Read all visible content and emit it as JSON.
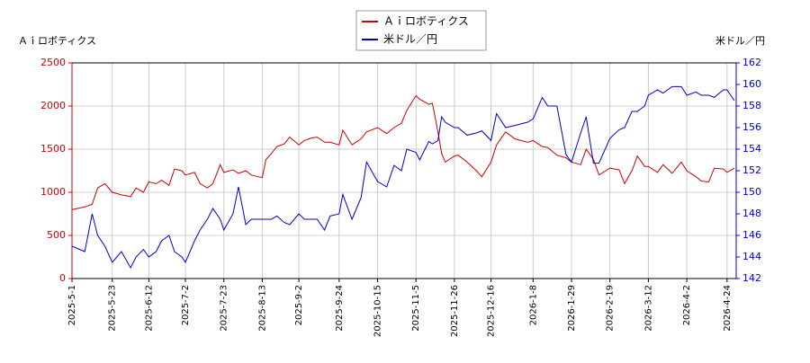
{
  "chart_data": {
    "type": "line",
    "y_label": "Ａｉロボティクス",
    "y2_label": "米ドル／円",
    "x": [
      "2025-5-1",
      "2025-5-8",
      "2025-5-12",
      "2025-5-15",
      "2025-5-19",
      "2025-5-23",
      "2025-5-28",
      "2025-6-2",
      "2025-6-5",
      "2025-6-9",
      "2025-6-12",
      "2025-6-16",
      "2025-6-19",
      "2025-6-23",
      "2025-6-26",
      "2025-6-30",
      "2025-7-2",
      "2025-7-7",
      "2025-7-10",
      "2025-7-14",
      "2025-7-17",
      "2025-7-21",
      "2025-7-23",
      "2025-7-28",
      "2025-7-31",
      "2025-8-4",
      "2025-8-7",
      "2025-8-13",
      "2025-8-15",
      "2025-8-18",
      "2025-8-21",
      "2025-8-25",
      "2025-8-28",
      "2025-9-2",
      "2025-9-5",
      "2025-9-9",
      "2025-9-12",
      "2025-9-16",
      "2025-9-19",
      "2025-9-24",
      "2025-9-26",
      "2025-10-1",
      "2025-10-6",
      "2025-10-9",
      "2025-10-15",
      "2025-10-20",
      "2025-10-24",
      "2025-10-28",
      "2025-10-31",
      "2025-11-5",
      "2025-11-7",
      "2025-11-12",
      "2025-11-14",
      "2025-11-17",
      "2025-11-19",
      "2025-11-21",
      "2025-11-26",
      "2025-11-28",
      "2025-12-3",
      "2025-12-8",
      "2025-12-11",
      "2025-12-16",
      "2025-12-19",
      "2025-12-24",
      "2025-12-29",
      "2026-1-5",
      "2026-1-8",
      "2026-1-13",
      "2026-1-16",
      "2026-1-21",
      "2026-1-26",
      "2026-1-29",
      "2026-2-3",
      "2026-2-6",
      "2026-2-10",
      "2026-2-13",
      "2026-2-19",
      "2026-2-24",
      "2026-2-27",
      "2026-3-3",
      "2026-3-6",
      "2026-3-10",
      "2026-3-12",
      "2026-3-17",
      "2026-3-20",
      "2026-3-25",
      "2026-3-30",
      "2026-4-2",
      "2026-4-7",
      "2026-4-10",
      "2026-4-14",
      "2026-4-17",
      "2026-4-22",
      "2026-4-24",
      "2026-4-28"
    ],
    "series": [
      {
        "name": "Ａｉロボティクス",
        "color": "#cc0000",
        "values": [
          800,
          830,
          860,
          1050,
          1100,
          1000,
          970,
          950,
          1050,
          1000,
          1120,
          1100,
          1140,
          1080,
          1270,
          1250,
          1200,
          1230,
          1100,
          1050,
          1100,
          1320,
          1230,
          1260,
          1220,
          1250,
          1200,
          1170,
          1380,
          1450,
          1530,
          1560,
          1640,
          1550,
          1600,
          1630,
          1640,
          1580,
          1580,
          1550,
          1720,
          1550,
          1620,
          1700,
          1750,
          1680,
          1750,
          1800,
          1950,
          2120,
          2080,
          2020,
          2030,
          1700,
          1450,
          1350,
          1420,
          1430,
          1350,
          1250,
          1180,
          1350,
          1550,
          1700,
          1620,
          1580,
          1600,
          1530,
          1520,
          1430,
          1400,
          1350,
          1320,
          1500,
          1380,
          1200,
          1280,
          1260,
          1100,
          1250,
          1420,
          1300,
          1300,
          1230,
          1320,
          1220,
          1350,
          1250,
          1180,
          1130,
          1120,
          1280,
          1270,
          1230,
          1280
        ]
      },
      {
        "name": "米ドル／円",
        "color": "#0000cc",
        "axis": "y2",
        "values": [
          145,
          144.5,
          148,
          146,
          145,
          143.5,
          144.5,
          143,
          144,
          144.7,
          144,
          144.5,
          145.5,
          146,
          144.5,
          144,
          143.5,
          145.5,
          146.5,
          147.5,
          148.5,
          147.5,
          146.5,
          148,
          150.5,
          147,
          147.5,
          147.5,
          147.5,
          147.5,
          147.8,
          147.2,
          147,
          148,
          147.5,
          147.5,
          147.5,
          146.5,
          147.8,
          148,
          149.8,
          147.5,
          149.5,
          152.8,
          151,
          150.5,
          152.5,
          152,
          154,
          153.7,
          153,
          154.7,
          154.5,
          154.8,
          157,
          156.5,
          156,
          156,
          155.3,
          155.5,
          155.7,
          154.8,
          157.3,
          156,
          156.2,
          156.5,
          156.8,
          158.8,
          158,
          158,
          153.5,
          152.8,
          155.5,
          157,
          152.7,
          152.7,
          155,
          155.8,
          156,
          157.5,
          157.5,
          158,
          159,
          159.5,
          159.2,
          159.8,
          159.8,
          159,
          159.3,
          159,
          159,
          158.8,
          159.5,
          159.5,
          158.5
        ]
      }
    ],
    "xlim": [
      "2025-5-1",
      "2026-4-29"
    ],
    "xticks": [
      "2025-5-1",
      "2025-5-23",
      "2025-6-12",
      "2025-7-2",
      "2025-7-23",
      "2025-8-13",
      "2025-9-2",
      "2025-9-24",
      "2025-10-15",
      "2025-11-5",
      "2025-11-26",
      "2025-12-16",
      "2026-1-8",
      "2026-1-29",
      "2026-2-19",
      "2026-3-12",
      "2026-4-2",
      "2026-4-24"
    ],
    "ylim": [
      0,
      2500
    ],
    "yticks": [
      0,
      500,
      1000,
      1500,
      2000,
      2500
    ],
    "y2lim": [
      142,
      162
    ],
    "y2ticks": [
      142,
      144,
      146,
      148,
      150,
      152,
      154,
      156,
      158,
      160,
      162
    ],
    "grid": true,
    "legend": "top"
  }
}
